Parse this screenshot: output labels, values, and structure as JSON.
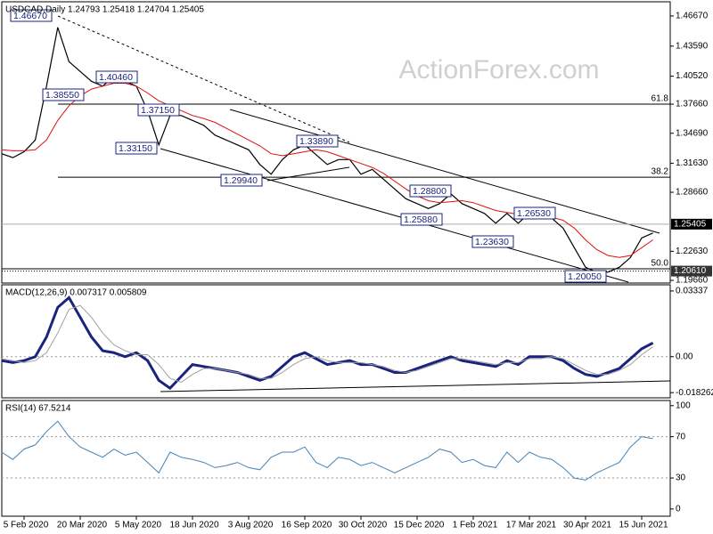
{
  "chart_data": [
    {
      "type": "line",
      "title": "USDCAD,Daily  1.24793 1.25418 1.24704 1.25405",
      "watermark": "ActionForex.com",
      "categories": [
        null,
        null,
        "5 Feb 2020",
        null,
        null,
        null,
        null,
        "20 Mar 2020",
        null,
        null,
        null,
        null,
        "5 May 2020",
        null,
        null,
        null,
        null,
        "18 Jun 2020",
        null,
        null,
        null,
        null,
        "3 Aug 2020",
        null,
        null,
        null,
        null,
        "16 Sep 2020",
        null,
        null,
        null,
        null,
        "30 Oct 2020",
        null,
        null,
        null,
        null,
        "15 Dec 2020",
        null,
        null,
        null,
        null,
        "1 Feb 2021",
        null,
        null,
        null,
        null,
        "17 Mar 2021",
        null,
        null,
        null,
        null,
        "30 Apr 2021",
        null,
        null,
        null,
        null,
        "15 Jun 2021",
        null
      ],
      "series": [
        {
          "name": "Price",
          "color": "#000000",
          "values": [
            1.326,
            1.322,
            1.328,
            1.34,
            1.395,
            1.455,
            1.42,
            1.41,
            1.4,
            1.395,
            1.405,
            1.4,
            1.395,
            1.37,
            1.335,
            1.365,
            1.365,
            1.36,
            1.355,
            1.345,
            1.34,
            1.335,
            1.33,
            1.315,
            1.305,
            1.32,
            1.33,
            1.335,
            1.325,
            1.315,
            1.32,
            1.32,
            1.305,
            1.31,
            1.3,
            1.29,
            1.28,
            1.275,
            1.27,
            1.275,
            1.285,
            1.275,
            1.27,
            1.265,
            1.255,
            1.265,
            1.255,
            1.265,
            1.262,
            1.26,
            1.25,
            1.23,
            1.21,
            1.205,
            1.205,
            1.21,
            1.22,
            1.24,
            1.245
          ]
        },
        {
          "name": "MA",
          "color": "#e01010",
          "values": [
            1.33,
            1.329,
            1.329,
            1.33,
            1.34,
            1.36,
            1.375,
            1.385,
            1.392,
            1.395,
            1.398,
            1.398,
            1.395,
            1.388,
            1.38,
            1.375,
            1.37,
            1.365,
            1.362,
            1.358,
            1.352,
            1.346,
            1.34,
            1.334,
            1.326,
            1.324,
            1.326,
            1.328,
            1.33,
            1.328,
            1.324,
            1.32,
            1.316,
            1.312,
            1.306,
            1.298,
            1.29,
            1.283,
            1.278,
            1.276,
            1.277,
            1.278,
            1.276,
            1.272,
            1.268,
            1.266,
            1.264,
            1.263,
            1.262,
            1.261,
            1.258,
            1.25,
            1.238,
            1.228,
            1.222,
            1.22,
            1.222,
            1.23,
            1.238
          ]
        }
      ],
      "ylim": [
        1.1939,
        1.4812
      ],
      "yticks": [
        {
          "value": 1.4667,
          "label": "1.46670"
        },
        {
          "value": 1.4359,
          "label": "1.43590"
        },
        {
          "value": 1.4052,
          "label": "1.40520"
        },
        {
          "value": 1.3766,
          "label": "1.37660"
        },
        {
          "value": 1.3469,
          "label": "1.34690"
        },
        {
          "value": 1.3163,
          "label": "1.31630"
        },
        {
          "value": 1.2866,
          "label": "1.28660"
        },
        {
          "value": 1.2263,
          "label": "1.22630"
        },
        {
          "value": 1.1966,
          "label": "1.19660"
        }
      ],
      "price_labels": [
        {
          "value": 1.25405,
          "label": "1.25405",
          "color": "#000000"
        },
        {
          "value": 1.2061,
          "label": "1.20610",
          "color": "#333333"
        }
      ],
      "fib_levels": [
        {
          "value": 1.3766,
          "label": "61.8"
        },
        {
          "value": 1.302,
          "label": "38.2"
        },
        {
          "value": 1.2085,
          "label": "50.0"
        }
      ],
      "annotations": [
        {
          "value": 1.4667,
          "label": "1.46670"
        },
        {
          "value": 1.3855,
          "label": "1.38550"
        },
        {
          "value": 1.4046,
          "label": "1.40460"
        },
        {
          "value": 1.3715,
          "label": "1.37150"
        },
        {
          "value": 1.3315,
          "label": "1.33150"
        },
        {
          "value": 1.2994,
          "label": "1.29940"
        },
        {
          "value": 1.3389,
          "label": "1.33890"
        },
        {
          "value": 1.288,
          "label": "1.28800"
        },
        {
          "value": 1.2588,
          "label": "1.25880"
        },
        {
          "value": 1.2653,
          "label": "1.26530"
        },
        {
          "value": 1.2363,
          "label": "1.23630"
        },
        {
          "value": 1.2005,
          "label": "1.20050"
        }
      ]
    },
    {
      "type": "line",
      "title": "MACD(12,26,9) 0.007317 0.005809",
      "series": [
        {
          "name": "MACD",
          "color": "#1a237e",
          "values": [
            -0.002,
            -0.003,
            -0.002,
            0.0,
            0.01,
            0.025,
            0.03,
            0.02,
            0.01,
            0.003,
            0.002,
            0.0,
            0.002,
            -0.002,
            -0.012,
            -0.016,
            -0.01,
            -0.004,
            -0.005,
            -0.006,
            -0.007,
            -0.008,
            -0.01,
            -0.012,
            -0.01,
            -0.005,
            0.0,
            0.002,
            -0.001,
            -0.004,
            -0.003,
            -0.002,
            -0.004,
            -0.004,
            -0.006,
            -0.008,
            -0.008,
            -0.006,
            -0.004,
            -0.002,
            0.0,
            -0.002,
            -0.003,
            -0.004,
            -0.005,
            -0.002,
            -0.004,
            0.0,
            0.0,
            0.0,
            -0.002,
            -0.006,
            -0.009,
            -0.01,
            -0.008,
            -0.006,
            -0.001,
            0.004,
            0.007
          ]
        },
        {
          "name": "Signal",
          "color": "#a0a0a0",
          "values": [
            -0.001,
            -0.002,
            -0.003,
            -0.002,
            0.002,
            0.012,
            0.024,
            0.026,
            0.02,
            0.012,
            0.006,
            0.003,
            0.001,
            0.001,
            -0.004,
            -0.011,
            -0.013,
            -0.009,
            -0.006,
            -0.006,
            -0.007,
            -0.008,
            -0.009,
            -0.011,
            -0.011,
            -0.008,
            -0.004,
            -0.001,
            0.0,
            -0.002,
            -0.003,
            -0.003,
            -0.003,
            -0.004,
            -0.005,
            -0.007,
            -0.008,
            -0.007,
            -0.005,
            -0.003,
            -0.001,
            -0.001,
            -0.002,
            -0.003,
            -0.004,
            -0.003,
            -0.003,
            -0.001,
            -0.001,
            0.0,
            -0.001,
            -0.004,
            -0.007,
            -0.009,
            -0.009,
            -0.007,
            -0.004,
            0.001,
            0.005
          ]
        }
      ],
      "ylim": [
        -0.0209,
        0.0365
      ],
      "yticks": [
        {
          "value": 0.03337,
          "label": "0.03337"
        },
        {
          "value": 0,
          "label": "0.00"
        },
        {
          "value": -0.018262,
          "label": "-0.018262"
        }
      ],
      "levels": [
        0
      ]
    },
    {
      "type": "line",
      "title": "RSI(14) 67.5214",
      "series": [
        {
          "name": "RSI",
          "color": "#4682b4",
          "values": [
            55,
            48,
            58,
            62,
            75,
            85,
            70,
            60,
            55,
            50,
            58,
            52,
            55,
            45,
            35,
            55,
            50,
            48,
            45,
            40,
            42,
            45,
            40,
            38,
            50,
            55,
            55,
            60,
            45,
            40,
            50,
            48,
            42,
            45,
            40,
            35,
            40,
            45,
            50,
            58,
            55,
            45,
            48,
            42,
            40,
            55,
            45,
            55,
            50,
            48,
            40,
            30,
            28,
            35,
            40,
            45,
            60,
            70,
            68
          ]
        }
      ],
      "ylim": [
        -7,
        105
      ],
      "yticks": [
        100,
        70,
        30,
        0
      ],
      "levels": [
        70,
        30
      ]
    }
  ]
}
